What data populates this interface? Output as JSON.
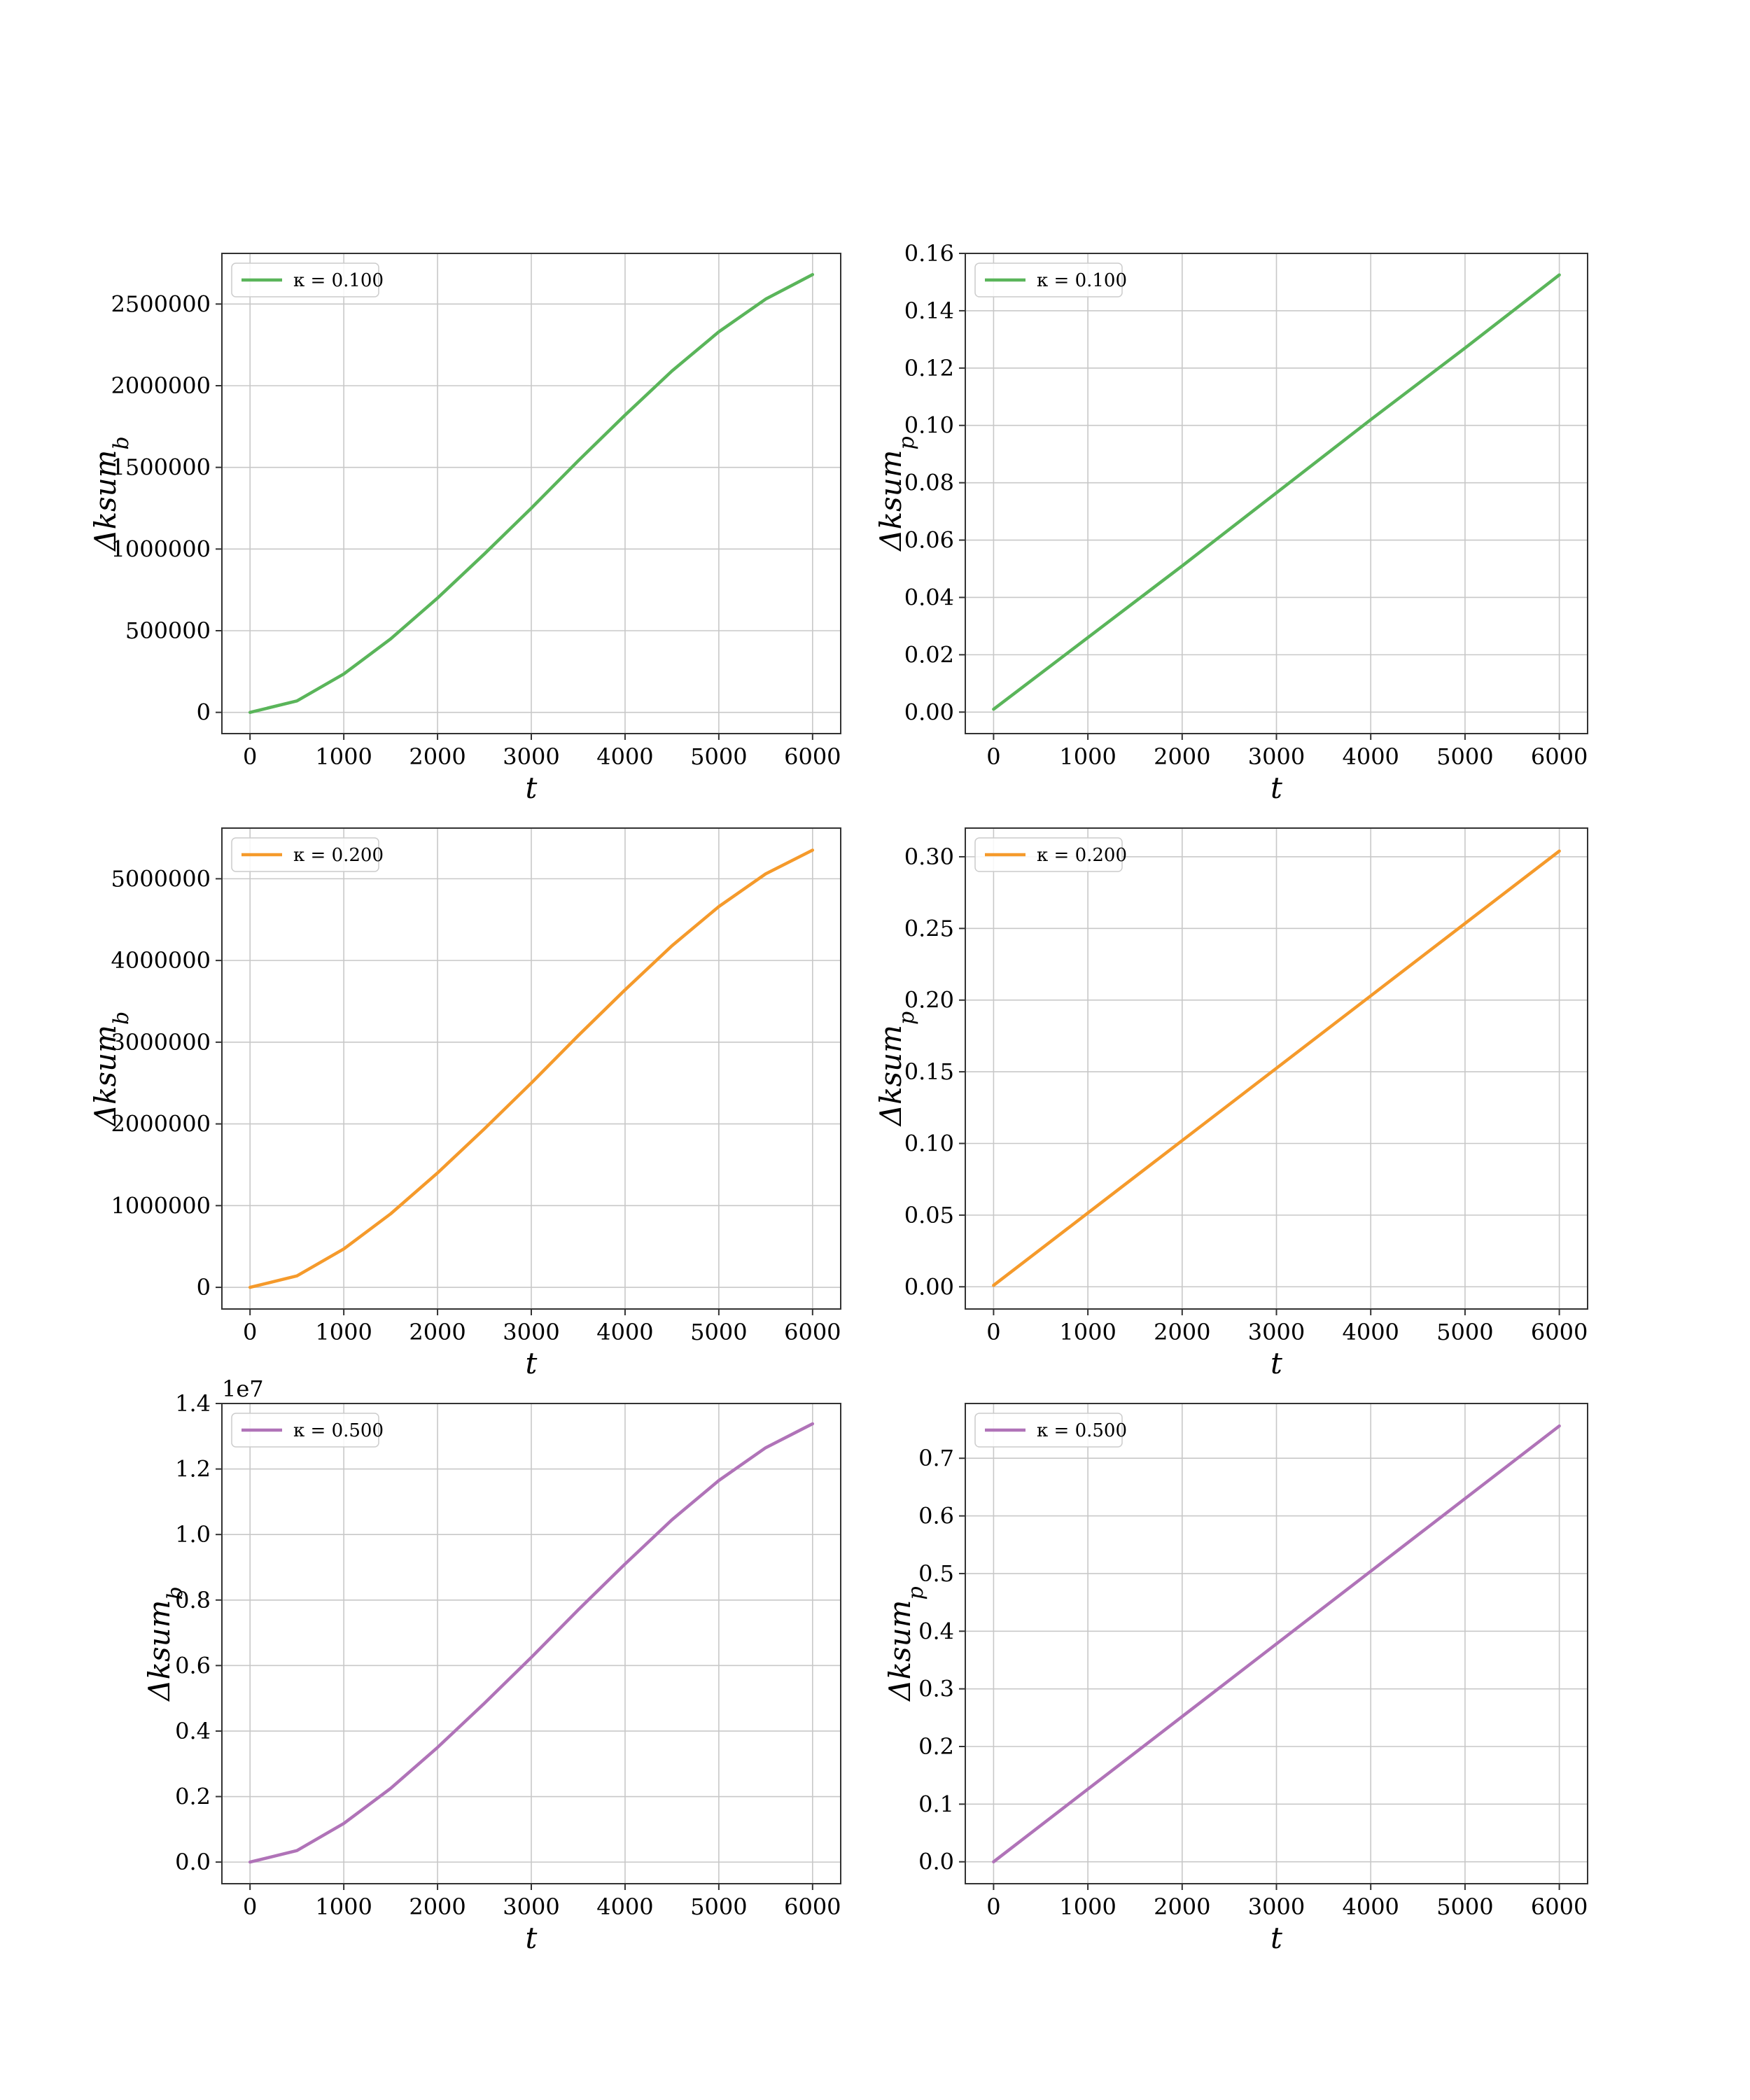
{
  "chart_data": [
    {
      "type": "line",
      "xlabel": "t",
      "ylabel": "Δksum_b",
      "ylabel_main": "Δksum",
      "ylabel_sub": "b",
      "xlim": [
        -300,
        6300
      ],
      "ylim": [
        -130000,
        2810000
      ],
      "xticks": [
        0,
        1000,
        2000,
        3000,
        4000,
        5000,
        6000
      ],
      "yticks": [
        0,
        500000,
        1000000,
        1500000,
        2000000,
        2500000
      ],
      "ytick_labels": [
        "0",
        "500000",
        "1000000",
        "1500000",
        "2000000",
        "2500000"
      ],
      "offset_text": "",
      "grid": true,
      "legend_placement": "upper-left",
      "series": [
        {
          "name": "κ = 0.100",
          "color": "#5ab55a",
          "x": [
            0,
            500,
            1000,
            1500,
            2000,
            2500,
            3000,
            3500,
            4000,
            4500,
            5000,
            5500,
            6000
          ],
          "values": [
            0,
            70000,
            235000,
            450000,
            700000,
            970000,
            1250000,
            1540000,
            1820000,
            2090000,
            2330000,
            2530000,
            2680000
          ]
        }
      ]
    },
    {
      "type": "line",
      "xlabel": "t",
      "ylabel": "Δksum_p",
      "ylabel_main": "Δksum",
      "ylabel_sub": "p",
      "xlim": [
        -300,
        6300
      ],
      "ylim": [
        -0.0075,
        0.16
      ],
      "xticks": [
        0,
        1000,
        2000,
        3000,
        4000,
        5000,
        6000
      ],
      "yticks": [
        0.0,
        0.02,
        0.04,
        0.06,
        0.08,
        0.1,
        0.12,
        0.14,
        0.16
      ],
      "ytick_labels": [
        "0.00",
        "0.02",
        "0.04",
        "0.06",
        "0.08",
        "0.10",
        "0.12",
        "0.14",
        "0.16"
      ],
      "offset_text": "",
      "grid": true,
      "legend_placement": "upper-left",
      "series": [
        {
          "name": "κ = 0.100",
          "color": "#5ab55a",
          "x": [
            0,
            1000,
            2000,
            3000,
            4000,
            5000,
            6000
          ],
          "values": [
            0.001,
            0.026,
            0.051,
            0.0765,
            0.102,
            0.127,
            0.1525
          ]
        }
      ]
    },
    {
      "type": "line",
      "xlabel": "t",
      "ylabel": "Δksum_b",
      "ylabel_main": "Δksum",
      "ylabel_sub": "b",
      "xlim": [
        -300,
        6300
      ],
      "ylim": [
        -265000,
        5620000
      ],
      "xticks": [
        0,
        1000,
        2000,
        3000,
        4000,
        5000,
        6000
      ],
      "yticks": [
        0,
        1000000,
        2000000,
        3000000,
        4000000,
        5000000
      ],
      "ytick_labels": [
        "0",
        "1000000",
        "2000000",
        "3000000",
        "4000000",
        "5000000"
      ],
      "offset_text": "",
      "grid": true,
      "legend_placement": "upper-left",
      "series": [
        {
          "name": "κ = 0.200",
          "color": "#f59a2b",
          "x": [
            0,
            500,
            1000,
            1500,
            2000,
            2500,
            3000,
            3500,
            4000,
            4500,
            5000,
            5500,
            6000
          ],
          "values": [
            0,
            140000,
            470000,
            900000,
            1400000,
            1940000,
            2500000,
            3080000,
            3640000,
            4180000,
            4660000,
            5060000,
            5350000
          ]
        }
      ]
    },
    {
      "type": "line",
      "xlabel": "t",
      "ylabel": "Δksum_p",
      "ylabel_main": "Δksum",
      "ylabel_sub": "p",
      "xlim": [
        -300,
        6300
      ],
      "ylim": [
        -0.0155,
        0.32
      ],
      "xticks": [
        0,
        1000,
        2000,
        3000,
        4000,
        5000,
        6000
      ],
      "yticks": [
        0.0,
        0.05,
        0.1,
        0.15,
        0.2,
        0.25,
        0.3
      ],
      "ytick_labels": [
        "0.00",
        "0.05",
        "0.10",
        "0.15",
        "0.20",
        "0.25",
        "0.30"
      ],
      "offset_text": "",
      "grid": true,
      "legend_placement": "upper-left",
      "series": [
        {
          "name": "κ = 0.200",
          "color": "#f59a2b",
          "x": [
            0,
            1000,
            2000,
            3000,
            4000,
            5000,
            6000
          ],
          "values": [
            0.001,
            0.0515,
            0.102,
            0.1525,
            0.203,
            0.2535,
            0.304
          ]
        }
      ]
    },
    {
      "type": "line",
      "xlabel": "t",
      "ylabel": "Δksum_b",
      "ylabel_main": "Δksum",
      "ylabel_sub": "b",
      "xlim": [
        -300,
        6300
      ],
      "ylim": [
        -0.066,
        1.4
      ],
      "xticks": [
        0,
        1000,
        2000,
        3000,
        4000,
        5000,
        6000
      ],
      "yticks": [
        0.0,
        0.2,
        0.4,
        0.6,
        0.8,
        1.0,
        1.2,
        1.4
      ],
      "ytick_labels": [
        "0.0",
        "0.2",
        "0.4",
        "0.6",
        "0.8",
        "1.0",
        "1.2",
        "1.4"
      ],
      "offset_text": "1e7",
      "grid": true,
      "legend_placement": "upper-left",
      "series": [
        {
          "name": "κ = 0.500",
          "color": "#b073b8",
          "x": [
            0,
            500,
            1000,
            1500,
            2000,
            2500,
            3000,
            3500,
            4000,
            4500,
            5000,
            5500,
            6000
          ],
          "values": [
            0,
            0.035,
            0.118,
            0.225,
            0.35,
            0.485,
            0.625,
            0.77,
            0.91,
            1.045,
            1.165,
            1.265,
            1.338
          ]
        }
      ]
    },
    {
      "type": "line",
      "xlabel": "t",
      "ylabel": "Δksum_p",
      "ylabel_main": "Δksum",
      "ylabel_sub": "p",
      "xlim": [
        -300,
        6300
      ],
      "ylim": [
        -0.038,
        0.795
      ],
      "xticks": [
        0,
        1000,
        2000,
        3000,
        4000,
        5000,
        6000
      ],
      "yticks": [
        0.0,
        0.1,
        0.2,
        0.3,
        0.4,
        0.5,
        0.6,
        0.7
      ],
      "ytick_labels": [
        "0.0",
        "0.1",
        "0.2",
        "0.3",
        "0.4",
        "0.5",
        "0.6",
        "0.7"
      ],
      "offset_text": "",
      "grid": true,
      "legend_placement": "upper-left",
      "series": [
        {
          "name": "κ = 0.500",
          "color": "#b073b8",
          "x": [
            0,
            1000,
            2000,
            3000,
            4000,
            5000,
            6000
          ],
          "values": [
            0.0,
            0.126,
            0.252,
            0.378,
            0.504,
            0.63,
            0.756
          ]
        }
      ]
    }
  ]
}
